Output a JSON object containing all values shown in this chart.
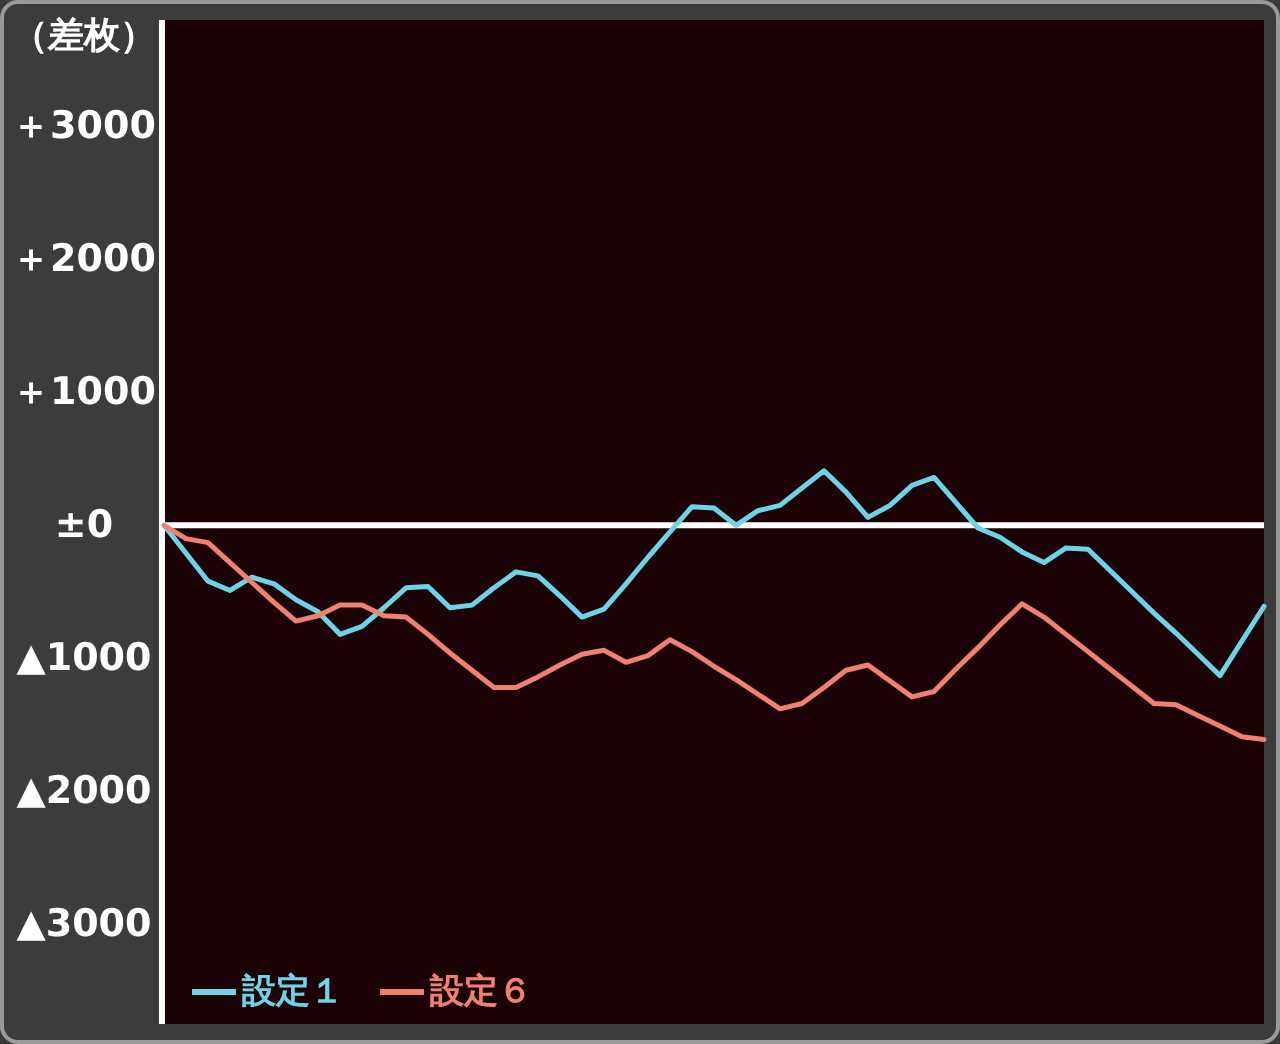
{
  "chart_data": {
    "type": "line",
    "ylabel": "（差枚）",
    "categories": [
      null,
      null,
      null,
      null,
      null,
      null,
      null,
      null,
      null,
      null,
      null,
      null,
      null,
      null,
      null,
      null,
      null,
      null,
      null,
      null,
      null,
      null,
      null,
      null,
      null,
      null,
      null,
      null,
      null,
      null,
      null,
      null,
      null,
      null,
      null,
      null,
      null,
      null,
      null,
      null,
      null,
      null,
      null,
      null,
      null,
      null,
      null,
      null,
      null,
      null,
      null
    ],
    "series": [
      {
        "name": "設定１",
        "color": "#6fd3e8",
        "values": [
          0,
          -210,
          -420,
          -490,
          -390,
          -440,
          -560,
          -650,
          -820,
          -760,
          -620,
          -470,
          -460,
          -620,
          -600,
          -470,
          -350,
          -380,
          -530,
          -690,
          -630,
          -440,
          -240,
          -50,
          140,
          130,
          0,
          110,
          150,
          280,
          410,
          250,
          60,
          150,
          300,
          360,
          170,
          -20,
          -90,
          -200,
          -280,
          -170,
          -180,
          -340,
          -500,
          -660,
          -810,
          -970,
          -1130,
          -870,
          -610
        ]
      },
      {
        "name": "設定６",
        "color": "#f08070",
        "values": [
          0,
          -100,
          -130,
          -280,
          -430,
          -580,
          -720,
          -680,
          -600,
          -600,
          -680,
          -690,
          -820,
          -960,
          -1090,
          -1220,
          -1220,
          -1140,
          -1050,
          -970,
          -940,
          -1030,
          -980,
          -860,
          -950,
          -1060,
          -1160,
          -1270,
          -1380,
          -1340,
          -1220,
          -1090,
          -1050,
          -1170,
          -1290,
          -1250,
          -1080,
          -920,
          -750,
          -590,
          -690,
          -820,
          -950,
          -1080,
          -1210,
          -1340,
          -1350,
          -1430,
          -1510,
          -1590,
          -1610
        ]
      }
    ],
    "ylim": [
      -3750,
      3800
    ],
    "yticks": [
      {
        "value": 3000,
        "label": "＋3000"
      },
      {
        "value": 2000,
        "label": "＋2000"
      },
      {
        "value": 1000,
        "label": "＋1000"
      },
      {
        "value": 0,
        "label": "±0"
      },
      {
        "value": -1000,
        "label": "▲1000"
      },
      {
        "value": -2000,
        "label": "▲2000"
      },
      {
        "value": -3000,
        "label": "▲3000"
      }
    ],
    "ref_lines": [
      {
        "axis": "y",
        "value": 0,
        "color": "#ffffff"
      }
    ],
    "tick_labels": "y",
    "legend": "bottom left",
    "marker": "none",
    "line_style": "solid"
  }
}
